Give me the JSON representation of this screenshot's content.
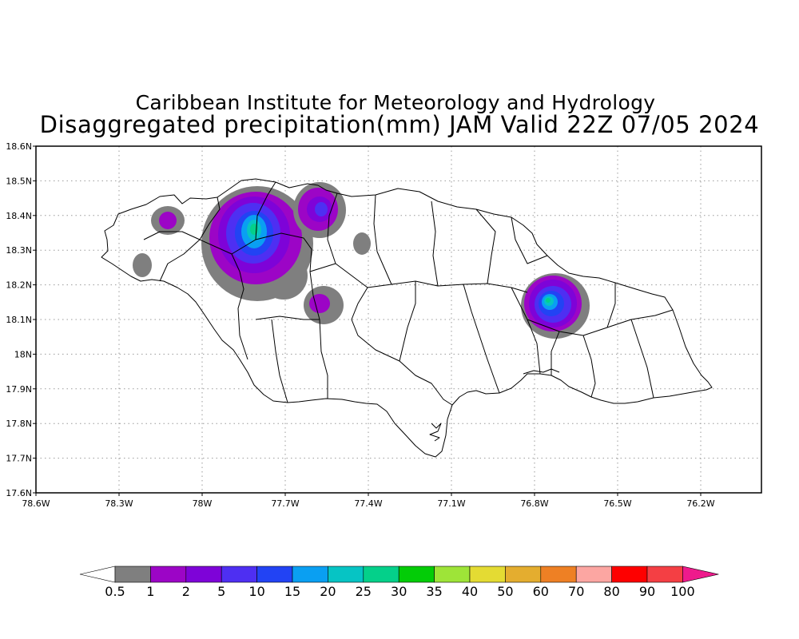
{
  "header": {
    "institute": "Caribbean Institute for Meteorology and Hydrology",
    "product": "Disaggregated precipitation(mm) JAM Valid 22Z 07/05 2024"
  },
  "map": {
    "lon_ticks": [
      "78.6W",
      "78.3W",
      "78W",
      "77.7W",
      "77.4W",
      "77.1W",
      "76.8W",
      "76.5W",
      "76.2W"
    ],
    "lat_ticks": [
      "18.6N",
      "18.5N",
      "18.4N",
      "18.3N",
      "18.2N",
      "18.1N",
      "18N",
      "17.9N",
      "17.8N",
      "17.7N",
      "17.6N"
    ],
    "grid_lines": "dotted",
    "land_outline_color": "#000000"
  },
  "colorbar": {
    "labels": [
      "0.5",
      "1",
      "2",
      "5",
      "10",
      "15",
      "20",
      "25",
      "30",
      "35",
      "40",
      "50",
      "60",
      "70",
      "80",
      "90",
      "100"
    ],
    "colors": [
      "#7f7f7f",
      "#9c05c6",
      "#7e03d8",
      "#4e2ff2",
      "#2243f4",
      "#0a9ff2",
      "#06c4c4",
      "#04d08a",
      "#03cc07",
      "#9ee438",
      "#e4db33",
      "#e4ad2f",
      "#ee8024",
      "#fca6a2",
      "#fe0000",
      "#f43f44"
    ],
    "under_color": "#ffffff",
    "over_color": "#ee1a8c"
  },
  "precip_areas": [
    {
      "name": "northwest-cluster",
      "max_category": "25"
    },
    {
      "name": "northeast-of-cluster",
      "max_category": "5"
    },
    {
      "name": "south-of-cluster",
      "max_category": "1"
    },
    {
      "name": "west-small",
      "max_category": "1"
    },
    {
      "name": "west-coast",
      "max_category": "0.5"
    },
    {
      "name": "central-north",
      "max_category": "0.5"
    },
    {
      "name": "east-cluster",
      "max_category": "25"
    }
  ]
}
